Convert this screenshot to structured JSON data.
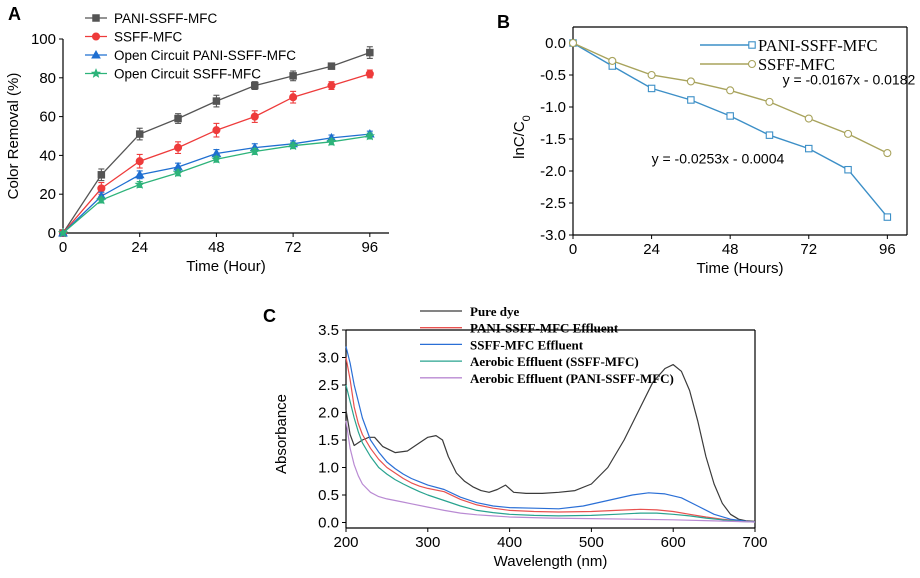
{
  "chart_data": [
    {
      "id": "A",
      "panel_label": "A",
      "type": "line",
      "xlabel": "Time (Hour)",
      "ylabel": "Color Removal (%)",
      "xlim": [
        0,
        102
      ],
      "ylim": [
        0,
        100
      ],
      "xticks": [
        0,
        24,
        48,
        72,
        96
      ],
      "yticks": [
        0,
        20,
        40,
        60,
        80,
        100
      ],
      "legend_position": "top-left",
      "series": [
        {
          "name": "PANI-SSFF-MFC",
          "color": "#555555",
          "marker": "square",
          "x": [
            0,
            12,
            24,
            36,
            48,
            60,
            72,
            84,
            96
          ],
          "values": [
            0,
            30,
            51,
            59,
            68,
            76,
            81,
            86,
            93
          ],
          "errors": [
            0,
            3,
            3,
            2.5,
            3,
            2,
            2.5,
            1.5,
            3
          ]
        },
        {
          "name": "SSFF-MFC",
          "color": "#ee3b3b",
          "marker": "circle",
          "x": [
            0,
            12,
            24,
            36,
            48,
            60,
            72,
            84,
            96
          ],
          "values": [
            0,
            23,
            37,
            44,
            53,
            60,
            70,
            76,
            82
          ],
          "errors": [
            0,
            3,
            3.5,
            3,
            3.5,
            3,
            3,
            2,
            2
          ]
        },
        {
          "name": "Open Circuit PANI-SSFF-MFC",
          "color": "#1f6fd1",
          "marker": "triangle",
          "x": [
            0,
            12,
            24,
            36,
            48,
            60,
            72,
            84,
            96
          ],
          "values": [
            0,
            19,
            30,
            34,
            41,
            44,
            46,
            49,
            51
          ],
          "errors": [
            0,
            2,
            2,
            2,
            2,
            2,
            1.5,
            1.5,
            1.5
          ]
        },
        {
          "name": "Open Circuit SSFF-MFC",
          "color": "#2db37a",
          "marker": "star",
          "x": [
            0,
            12,
            24,
            36,
            48,
            60,
            72,
            84,
            96
          ],
          "values": [
            0,
            17,
            25,
            31,
            38,
            42,
            45,
            47,
            50
          ],
          "errors": [
            0,
            1.5,
            1.5,
            1.5,
            1.5,
            1.5,
            1.5,
            1.5,
            1.5
          ]
        }
      ]
    },
    {
      "id": "B",
      "panel_label": "B",
      "type": "line",
      "xlabel": "Time (Hours)",
      "ylabel": "lnC/C0",
      "ylabel_main": "lnC/C",
      "ylabel_sub": "0",
      "xlim": [
        0,
        102
      ],
      "ylim": [
        -3.0,
        0.25
      ],
      "xticks": [
        0,
        24,
        48,
        72,
        96
      ],
      "yticks": [
        0.0,
        -0.5,
        -1.0,
        -1.5,
        -2.0,
        -2.5,
        -3.0
      ],
      "ytick_labels": [
        "0.0",
        "-0.5",
        "-1.0",
        "-1.5",
        "-2.0",
        "-2.5",
        "-3.0"
      ],
      "legend_position": "top-right",
      "series": [
        {
          "name": "PANI-SSFF-MFC",
          "color": "#3c8fc7",
          "marker": "square",
          "x": [
            0,
            12,
            24,
            36,
            48,
            60,
            72,
            84,
            96
          ],
          "values": [
            0,
            -0.36,
            -0.71,
            -0.89,
            -1.14,
            -1.44,
            -1.65,
            -1.98,
            -2.72
          ]
        },
        {
          "name": "SSFF-MFC",
          "color": "#a8a35c",
          "marker": "circle",
          "x": [
            0,
            12,
            24,
            36,
            48,
            60,
            72,
            84,
            96
          ],
          "values": [
            0,
            -0.28,
            -0.5,
            -0.6,
            -0.74,
            -0.92,
            -1.18,
            -1.42,
            -1.72
          ]
        }
      ],
      "annotations": [
        {
          "text": "y = -0.0167x - 0.0182",
          "x": 64,
          "y": -0.65
        },
        {
          "text": "y = -0.0253x - 0.0004",
          "x": 24,
          "y": -1.88
        }
      ]
    },
    {
      "id": "C",
      "panel_label": "C",
      "type": "line",
      "xlabel": "Wavelength (nm)",
      "ylabel": "Absorbance",
      "xlim": [
        200,
        700
      ],
      "ylim": [
        -0.1,
        3.5
      ],
      "xticks": [
        200,
        300,
        400,
        500,
        600,
        700
      ],
      "yticks": [
        0.0,
        0.5,
        1.0,
        1.5,
        2.0,
        2.5,
        3.0,
        3.5
      ],
      "ytick_labels": [
        "0.0",
        "0.5",
        "1.0",
        "1.5",
        "2.0",
        "2.5",
        "3.0",
        "3.5"
      ],
      "legend_position": "top",
      "series": [
        {
          "name": "Pure dye",
          "color": "#3a3a3a",
          "x": [
            200,
            205,
            210,
            215,
            220,
            228,
            235,
            245,
            260,
            275,
            290,
            300,
            310,
            318,
            325,
            335,
            345,
            355,
            365,
            375,
            385,
            395,
            405,
            420,
            440,
            460,
            480,
            500,
            520,
            540,
            560,
            575,
            590,
            600,
            610,
            620,
            630,
            640,
            650,
            660,
            670,
            680,
            690,
            700
          ],
          "values": [
            2.05,
            1.6,
            1.4,
            1.45,
            1.5,
            1.55,
            1.55,
            1.38,
            1.27,
            1.3,
            1.45,
            1.55,
            1.58,
            1.5,
            1.2,
            0.9,
            0.75,
            0.65,
            0.58,
            0.55,
            0.6,
            0.68,
            0.55,
            0.53,
            0.53,
            0.55,
            0.58,
            0.7,
            1.0,
            1.5,
            2.1,
            2.55,
            2.8,
            2.87,
            2.75,
            2.4,
            1.85,
            1.2,
            0.7,
            0.35,
            0.15,
            0.06,
            0.03,
            0.02
          ]
        },
        {
          "name": "PANI-SSFF-MFC Effluent",
          "color": "#e8514f",
          "x": [
            200,
            205,
            210,
            215,
            220,
            230,
            240,
            250,
            260,
            270,
            280,
            290,
            300,
            320,
            340,
            360,
            380,
            400,
            430,
            460,
            500,
            530,
            560,
            580,
            600,
            620,
            640,
            660,
            680,
            700
          ],
          "values": [
            3.0,
            2.6,
            2.1,
            1.8,
            1.6,
            1.35,
            1.15,
            1.0,
            0.9,
            0.8,
            0.72,
            0.66,
            0.62,
            0.56,
            0.42,
            0.32,
            0.26,
            0.22,
            0.2,
            0.19,
            0.2,
            0.22,
            0.24,
            0.23,
            0.2,
            0.15,
            0.1,
            0.06,
            0.03,
            0.01
          ]
        },
        {
          "name": "SSFF-MFC Effluent",
          "color": "#2a6fd6",
          "x": [
            200,
            205,
            210,
            215,
            220,
            230,
            240,
            250,
            260,
            270,
            280,
            290,
            300,
            320,
            340,
            360,
            380,
            400,
            430,
            460,
            490,
            520,
            550,
            570,
            590,
            610,
            630,
            650,
            670,
            690,
            700
          ],
          "values": [
            3.2,
            2.9,
            2.5,
            2.2,
            1.9,
            1.5,
            1.28,
            1.1,
            0.98,
            0.88,
            0.8,
            0.74,
            0.68,
            0.6,
            0.46,
            0.36,
            0.3,
            0.27,
            0.26,
            0.25,
            0.3,
            0.4,
            0.5,
            0.54,
            0.52,
            0.45,
            0.3,
            0.15,
            0.06,
            0.02,
            0.01
          ]
        },
        {
          "name": "Aerobic Effluent (SSFF-MFC)",
          "color": "#28a38f",
          "x": [
            200,
            205,
            210,
            215,
            220,
            230,
            240,
            250,
            260,
            270,
            280,
            290,
            300,
            320,
            340,
            360,
            380,
            400,
            430,
            460,
            500,
            530,
            560,
            580,
            600,
            620,
            640,
            660,
            680,
            700
          ],
          "values": [
            2.5,
            2.2,
            1.9,
            1.65,
            1.45,
            1.2,
            1.0,
            0.88,
            0.78,
            0.7,
            0.63,
            0.56,
            0.5,
            0.4,
            0.3,
            0.22,
            0.18,
            0.15,
            0.13,
            0.12,
            0.13,
            0.15,
            0.17,
            0.17,
            0.15,
            0.12,
            0.08,
            0.05,
            0.02,
            0.01
          ]
        },
        {
          "name": "Aerobic Effluent (PANI-SSFF-MFC)",
          "color": "#b98ad3",
          "x": [
            200,
            205,
            210,
            215,
            220,
            230,
            240,
            250,
            260,
            270,
            280,
            300,
            320,
            340,
            360,
            380,
            400,
            450,
            500,
            550,
            600,
            650,
            700
          ],
          "values": [
            1.85,
            1.35,
            1.05,
            0.85,
            0.7,
            0.55,
            0.47,
            0.43,
            0.4,
            0.37,
            0.34,
            0.28,
            0.22,
            0.17,
            0.14,
            0.12,
            0.1,
            0.08,
            0.07,
            0.06,
            0.05,
            0.03,
            0.01
          ]
        }
      ]
    }
  ]
}
